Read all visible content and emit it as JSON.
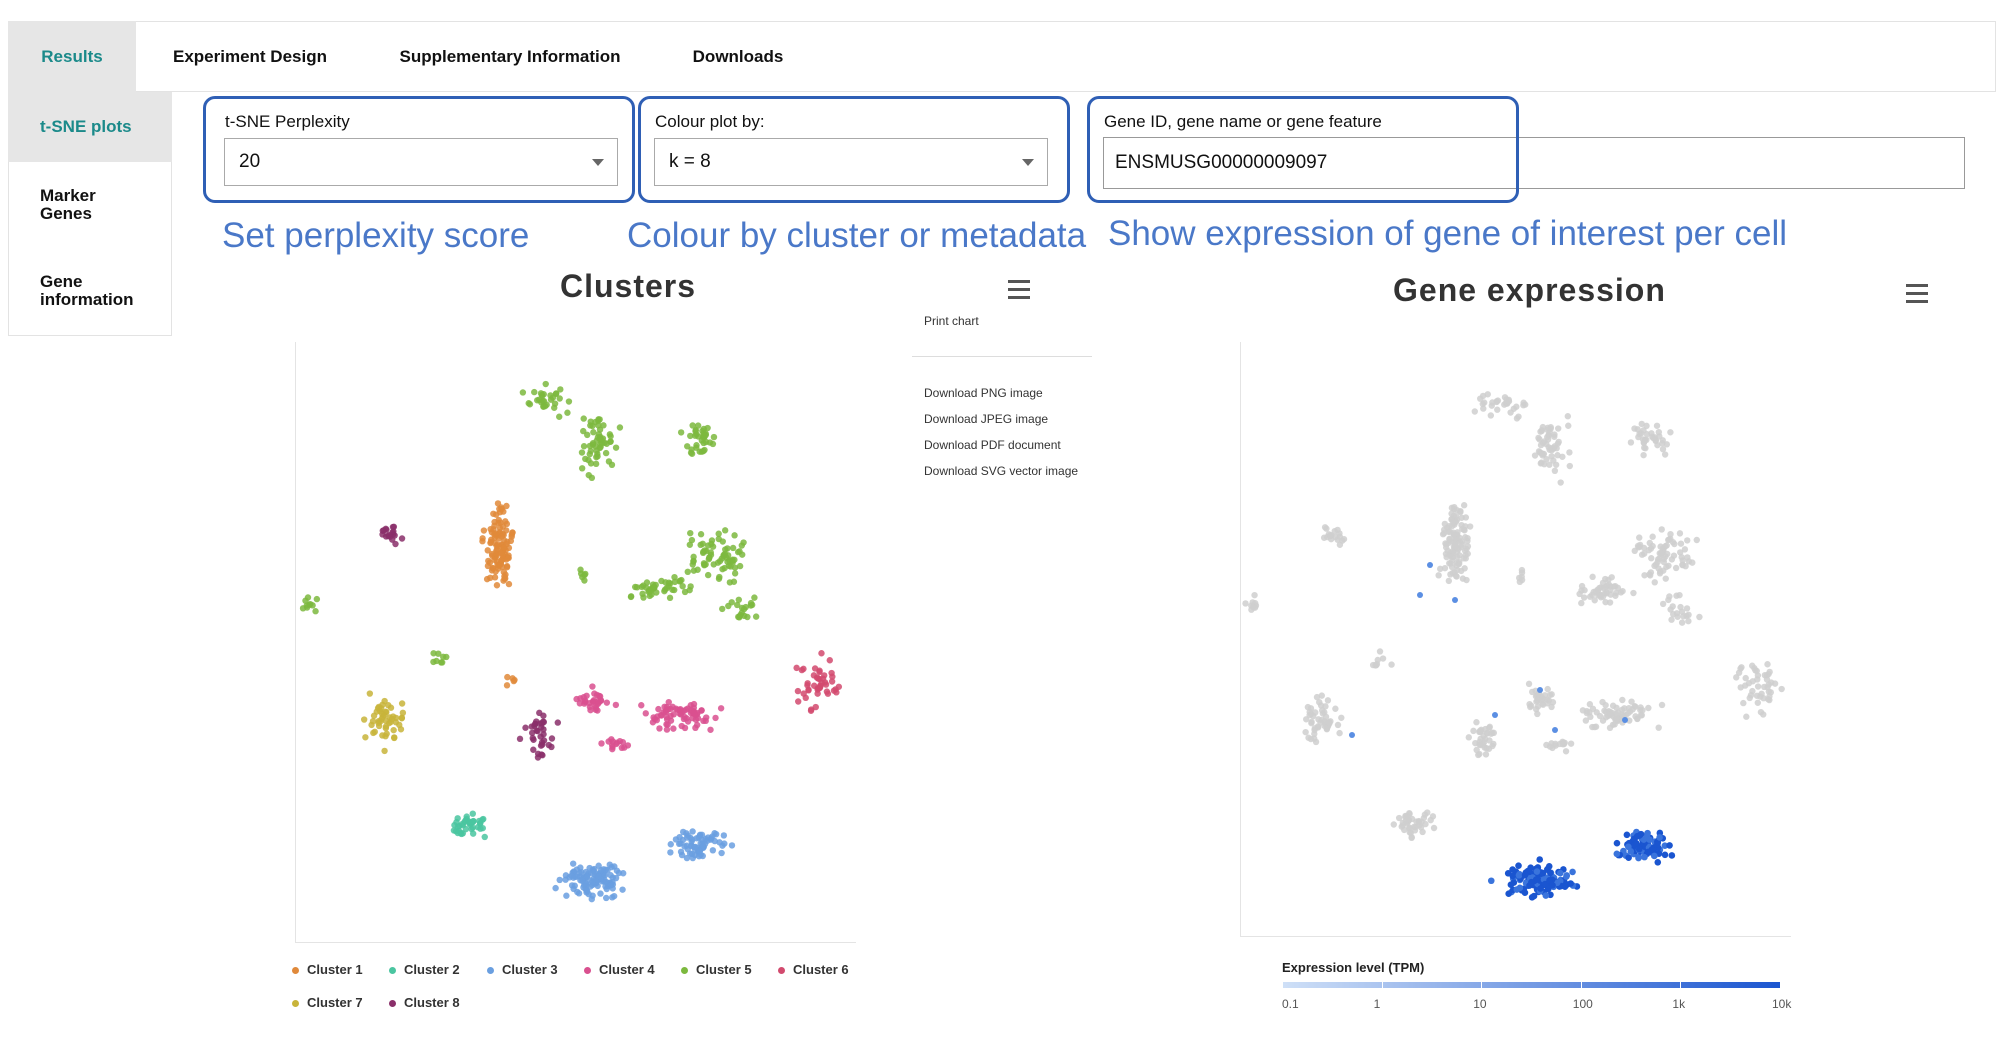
{
  "tabs": [
    {
      "label": "Results",
      "active": true
    },
    {
      "label": "Experiment Design",
      "active": false
    },
    {
      "label": "Supplementary Information",
      "active": false
    },
    {
      "label": "Downloads",
      "active": false
    }
  ],
  "sidebar": {
    "items": [
      {
        "label": "t-SNE plots",
        "active": true
      },
      {
        "label": "Marker Genes",
        "active": false
      },
      {
        "label": "Gene information",
        "active": false
      }
    ]
  },
  "controls": {
    "perplexity": {
      "label": "t-SNE Perplexity",
      "value": "20"
    },
    "colour": {
      "label": "Colour plot by:",
      "value": "k = 8"
    },
    "gene": {
      "label": "Gene ID, gene name or gene feature",
      "value": "ENSMUSG00000009097"
    }
  },
  "annotations": {
    "perplexity": "Set perplexity score",
    "colour": "Colour by cluster or metadata",
    "gene": "Show expression of gene of interest per cell"
  },
  "clusters_chart": {
    "title": "Clusters",
    "menu": [
      "Print chart",
      "Download PNG image",
      "Download JPEG image",
      "Download PDF document",
      "Download SVG vector image"
    ],
    "legend": [
      {
        "name": "Cluster 1",
        "color": "#e0893a"
      },
      {
        "name": "Cluster 2",
        "color": "#4ac5a0"
      },
      {
        "name": "Cluster 3",
        "color": "#6a9fe0"
      },
      {
        "name": "Cluster 4",
        "color": "#d9508f"
      },
      {
        "name": "Cluster 5",
        "color": "#7cb93e"
      },
      {
        "name": "Cluster 6",
        "color": "#d24a6e"
      },
      {
        "name": "Cluster 7",
        "color": "#c8b43a"
      },
      {
        "name": "Cluster 8",
        "color": "#8a2f6a"
      }
    ]
  },
  "expression_chart": {
    "title": "Gene expression",
    "colorbar_title": "Expression level (TPM)",
    "ticks": [
      "0.1",
      "1",
      "10",
      "100",
      "1k",
      "10k"
    ],
    "low_color": "#cfe0f7",
    "high_color": "#1a55d0",
    "background_cell_color": "#cfcfcf"
  }
}
